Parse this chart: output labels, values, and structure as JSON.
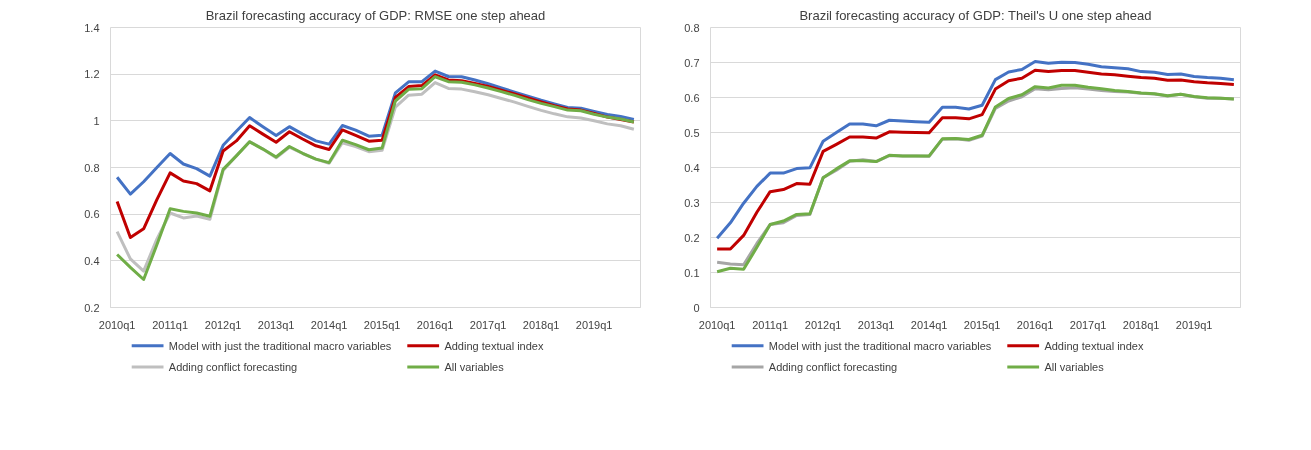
{
  "chart_data": [
    {
      "type": "line",
      "title": "Brazil forecasting accuracy of GDP: RMSE one step ahead",
      "categories": [
        "2010q1",
        null,
        null,
        null,
        "2011q1",
        null,
        null,
        null,
        "2012q1",
        null,
        null,
        null,
        "2013q1",
        null,
        null,
        null,
        "2014q1",
        null,
        null,
        null,
        "2015q1",
        null,
        null,
        null,
        "2016q1",
        null,
        null,
        null,
        "2017q1",
        null,
        null,
        null,
        "2018q1",
        null,
        null,
        null,
        "2019q1",
        null,
        null,
        null
      ],
      "ylim": [
        0.2,
        1.4
      ],
      "yticks": [
        0.2,
        0.4,
        0.6,
        0.8,
        1,
        1.2,
        1.4
      ],
      "grid": "y",
      "legend": "bottom",
      "marker": "none",
      "line_style": "solid",
      "series": [
        {
          "name": "Model with just the traditional macro variables",
          "color": "#4472c4",
          "values": [
            0.758,
            0.686,
            0.739,
            0.8,
            0.86,
            0.815,
            0.795,
            0.763,
            0.895,
            0.955,
            1.014,
            0.975,
            0.937,
            0.975,
            0.943,
            0.914,
            0.9,
            0.98,
            0.96,
            0.934,
            0.938,
            1.12,
            1.167,
            1.168,
            1.213,
            1.19,
            1.189,
            1.175,
            1.159,
            1.141,
            1.123,
            1.106,
            1.088,
            1.072,
            1.057,
            1.054,
            1.04,
            1.027,
            1.019,
            1.006
          ]
        },
        {
          "name": "Adding textual index",
          "color": "#c00000",
          "values": [
            0.654,
            0.5,
            0.537,
            0.662,
            0.777,
            0.742,
            0.731,
            0.7,
            0.871,
            0.914,
            0.979,
            0.943,
            0.908,
            0.953,
            0.922,
            0.893,
            0.877,
            0.961,
            0.938,
            0.913,
            0.917,
            1.1,
            1.147,
            1.151,
            1.197,
            1.175,
            1.172,
            1.16,
            1.147,
            1.131,
            1.115,
            1.098,
            1.081,
            1.065,
            1.051,
            1.046,
            1.032,
            1.016,
            1.006,
            0.995
          ]
        },
        {
          "name": "Adding conflict forecasting",
          "color": "#bfbfbf",
          "values": [
            0.525,
            0.408,
            0.356,
            0.493,
            0.605,
            0.584,
            0.592,
            0.578,
            0.787,
            0.85,
            0.911,
            0.879,
            0.842,
            0.887,
            0.86,
            0.836,
            0.818,
            0.906,
            0.89,
            0.868,
            0.874,
            1.059,
            1.11,
            1.114,
            1.164,
            1.139,
            1.136,
            1.125,
            1.112,
            1.096,
            1.08,
            1.062,
            1.045,
            1.03,
            1.017,
            1.012,
            1.0,
            0.987,
            0.979,
            0.964
          ]
        },
        {
          "name": "All variables",
          "color": "#70ad47",
          "values": [
            0.427,
            0.372,
            0.32,
            0.469,
            0.623,
            0.612,
            0.605,
            0.591,
            0.792,
            0.85,
            0.91,
            0.879,
            0.845,
            0.89,
            0.861,
            0.836,
            0.821,
            0.917,
            0.898,
            0.876,
            0.884,
            1.085,
            1.135,
            1.138,
            1.189,
            1.168,
            1.165,
            1.154,
            1.141,
            1.125,
            1.109,
            1.091,
            1.075,
            1.061,
            1.046,
            1.043,
            1.028,
            1.016,
            1.008,
            0.995
          ]
        }
      ]
    },
    {
      "type": "line",
      "title": "Brazil forecasting accuracy of GDP: Theil's U one step ahead",
      "categories": [
        "2010q1",
        null,
        null,
        null,
        "2011q1",
        null,
        null,
        null,
        "2012q1",
        null,
        null,
        null,
        "2013q1",
        null,
        null,
        null,
        "2014q1",
        null,
        null,
        null,
        "2015q1",
        null,
        null,
        null,
        "2016q1",
        null,
        null,
        null,
        "2017q1",
        null,
        null,
        null,
        "2018q1",
        null,
        null,
        null,
        "2019q1",
        null,
        null,
        null
      ],
      "ylim": [
        0,
        0.8
      ],
      "yticks": [
        0,
        0.1,
        0.2,
        0.3,
        0.4,
        0.5,
        0.6,
        0.7,
        0.8
      ],
      "grid": "y",
      "legend": "bottom",
      "marker": "none",
      "line_style": "solid",
      "series": [
        {
          "name": "Model with just the traditional macro variables",
          "color": "#4472c4",
          "values": [
            0.198,
            0.242,
            0.298,
            0.346,
            0.384,
            0.384,
            0.397,
            0.399,
            0.475,
            0.5,
            0.524,
            0.524,
            0.519,
            0.535,
            0.533,
            0.531,
            0.529,
            0.572,
            0.572,
            0.567,
            0.578,
            0.651,
            0.673,
            0.68,
            0.703,
            0.698,
            0.701,
            0.7,
            0.695,
            0.688,
            0.685,
            0.682,
            0.674,
            0.672,
            0.666,
            0.667,
            0.66,
            0.657,
            0.655,
            0.651
          ]
        },
        {
          "name": "Adding textual index",
          "color": "#c00000",
          "values": [
            0.167,
            0.167,
            0.206,
            0.272,
            0.331,
            0.337,
            0.354,
            0.352,
            0.446,
            0.466,
            0.487,
            0.487,
            0.484,
            0.502,
            0.501,
            0.5,
            0.499,
            0.542,
            0.542,
            0.539,
            0.551,
            0.624,
            0.648,
            0.655,
            0.678,
            0.674,
            0.677,
            0.677,
            0.672,
            0.667,
            0.665,
            0.661,
            0.657,
            0.655,
            0.649,
            0.65,
            0.645,
            0.642,
            0.64,
            0.637
          ]
        },
        {
          "name": "Adding conflict forecasting",
          "color": "#a6a6a6",
          "values": [
            0.129,
            0.124,
            0.122,
            0.183,
            0.237,
            0.242,
            0.263,
            0.266,
            0.371,
            0.392,
            0.418,
            0.422,
            0.417,
            0.434,
            0.433,
            0.433,
            0.432,
            0.481,
            0.482,
            0.478,
            0.49,
            0.569,
            0.59,
            0.602,
            0.625,
            0.622,
            0.626,
            0.628,
            0.624,
            0.62,
            0.617,
            0.616,
            0.612,
            0.61,
            0.604,
            0.609,
            0.602,
            0.598,
            0.598,
            0.596
          ]
        },
        {
          "name": "All variables",
          "color": "#70ad47",
          "values": [
            0.102,
            0.112,
            0.109,
            0.172,
            0.237,
            0.247,
            0.266,
            0.268,
            0.371,
            0.396,
            0.419,
            0.419,
            0.417,
            0.435,
            0.433,
            0.433,
            0.433,
            0.482,
            0.483,
            0.48,
            0.492,
            0.573,
            0.597,
            0.608,
            0.631,
            0.627,
            0.635,
            0.635,
            0.629,
            0.625,
            0.62,
            0.617,
            0.613,
            0.611,
            0.605,
            0.609,
            0.603,
            0.599,
            0.598,
            0.596
          ]
        }
      ]
    }
  ]
}
